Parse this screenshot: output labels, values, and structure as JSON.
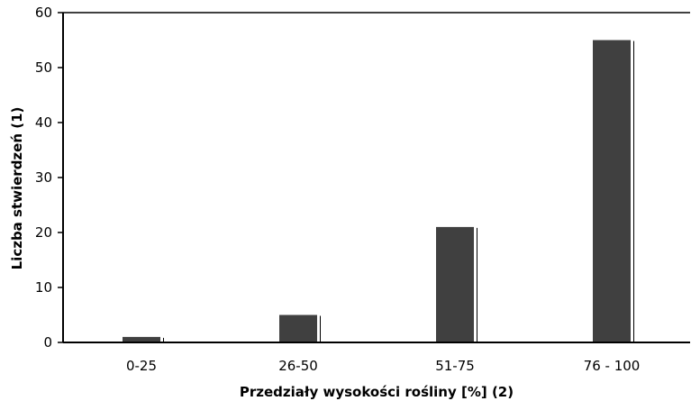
{
  "chart_data": {
    "type": "bar",
    "title": "",
    "xlabel": "Przedziały wysokości rośliny [%]  (2)",
    "ylabel": "Liczba stwierdzeń  (1)",
    "categories": [
      "0-25",
      "26-50",
      "51-75",
      "76 - 100"
    ],
    "values": [
      1,
      5,
      21,
      55
    ],
    "ylim": [
      0,
      60
    ],
    "yticks": [
      0,
      10,
      20,
      30,
      40,
      50,
      60
    ],
    "grid": false,
    "legend": "none",
    "bar_color": "#404040",
    "highlight_color": "#ffffff",
    "shadow_color": "#000000"
  }
}
